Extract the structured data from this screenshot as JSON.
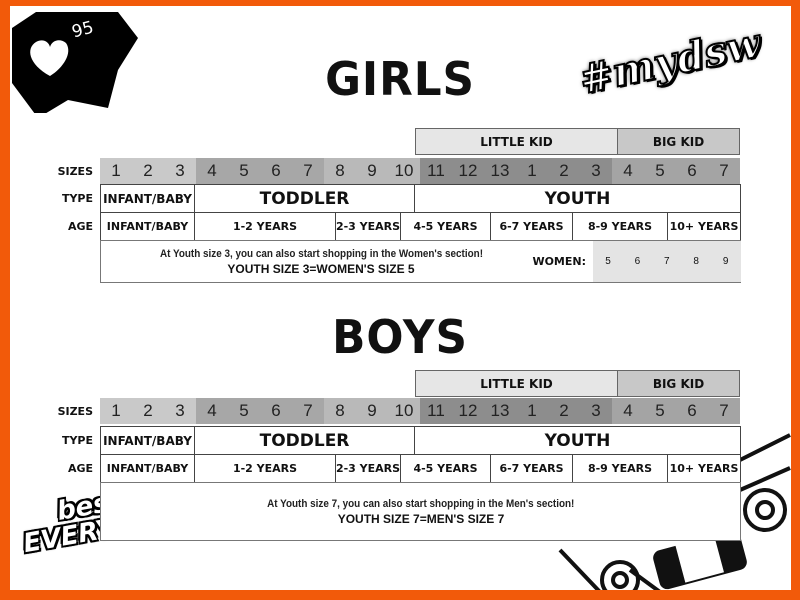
{
  "badge": {
    "icon": "heart-icon",
    "count": "95"
  },
  "hashtag": "#mydsw",
  "stamp": "best of EVERYTHING",
  "row_labels": {
    "sizes": "SIZES",
    "type": "TYPE",
    "age": "AGE"
  },
  "size_colors": [
    "#c9c9c9",
    "#c9c9c9",
    "#c9c9c9",
    "#a7a7a7",
    "#a7a7a7",
    "#a7a7a7",
    "#a7a7a7",
    "#b9b9b9",
    "#b9b9b9",
    "#b9b9b9",
    "#8d8d8d",
    "#8d8d8d",
    "#8d8d8d",
    "#8d8d8d",
    "#8d8d8d",
    "#8d8d8d",
    "#a4a4a4",
    "#a4a4a4",
    "#a4a4a4",
    "#a4a4a4"
  ],
  "sections": [
    {
      "title": "GIRLS",
      "headers": {
        "little_kid": "LITTLE KID",
        "big_kid": "BIG KID"
      },
      "sizes": [
        "1",
        "2",
        "3",
        "4",
        "5",
        "6",
        "7",
        "8",
        "9",
        "10",
        "11",
        "12",
        "13",
        "1",
        "2",
        "3",
        "4",
        "5",
        "6",
        "7"
      ],
      "types": [
        "INFANT/BABY",
        "TODDLER",
        "YOUTH"
      ],
      "ages": [
        "INFANT/BABY",
        "1-2 YEARS",
        "2-3 YEARS",
        "4-5 YEARS",
        "6-7 YEARS",
        "8-9 YEARS",
        "10+ YEARS"
      ],
      "note": "At Youth size 3, you can also start shopping in the Women's section!",
      "note_bold": "YOUTH SIZE 3=WOMEN'S SIZE 5",
      "conversion_label": "WOMEN:",
      "conversion_sizes": [
        "5",
        "6",
        "7",
        "8",
        "9"
      ]
    },
    {
      "title": "BOYS",
      "headers": {
        "little_kid": "LITTLE KID",
        "big_kid": "BIG KID"
      },
      "sizes": [
        "1",
        "2",
        "3",
        "4",
        "5",
        "6",
        "7",
        "8",
        "9",
        "10",
        "11",
        "12",
        "13",
        "1",
        "2",
        "3",
        "4",
        "5",
        "6",
        "7"
      ],
      "types": [
        "INFANT/BABY",
        "TODDLER",
        "YOUTH"
      ],
      "ages": [
        "INFANT/BABY",
        "1-2 YEARS",
        "2-3 YEARS",
        "4-5 YEARS",
        "6-7 YEARS",
        "8-9 YEARS",
        "10+ YEARS"
      ],
      "note": "At Youth size 7, you can also start shopping in the Men's section!",
      "note_bold": "YOUTH SIZE 7=MEN'S SIZE 7"
    }
  ]
}
